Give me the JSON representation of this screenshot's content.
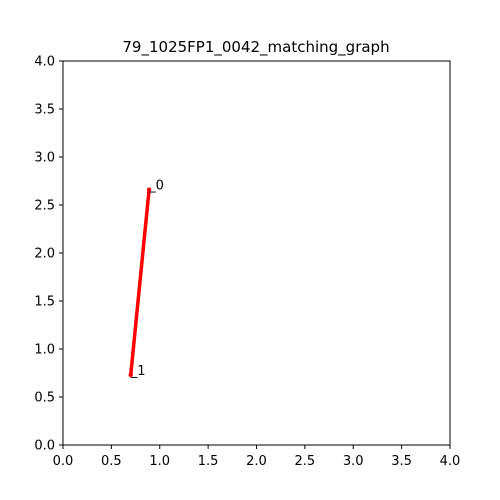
{
  "chart_data": {
    "type": "line",
    "title": "79_1025FP1_0042_matching_graph",
    "xlabel": "",
    "ylabel": "",
    "xlim": [
      0.0,
      4.0
    ],
    "ylim": [
      0.0,
      4.0
    ],
    "grid": false,
    "x_ticks": [
      "0.0",
      "0.5",
      "1.0",
      "1.5",
      "2.0",
      "2.5",
      "3.0",
      "3.5",
      "4.0"
    ],
    "y_ticks": [
      "0.0",
      "0.5",
      "1.0",
      "1.5",
      "2.0",
      "2.5",
      "3.0",
      "3.5",
      "4.0"
    ],
    "nodes": [
      {
        "label": "0",
        "x": 0.89,
        "y": 2.66
      },
      {
        "label": "1",
        "x": 0.7,
        "y": 0.73
      }
    ],
    "edges": [
      {
        "from": 0,
        "to": 1,
        "color": "#ff0000"
      }
    ]
  }
}
